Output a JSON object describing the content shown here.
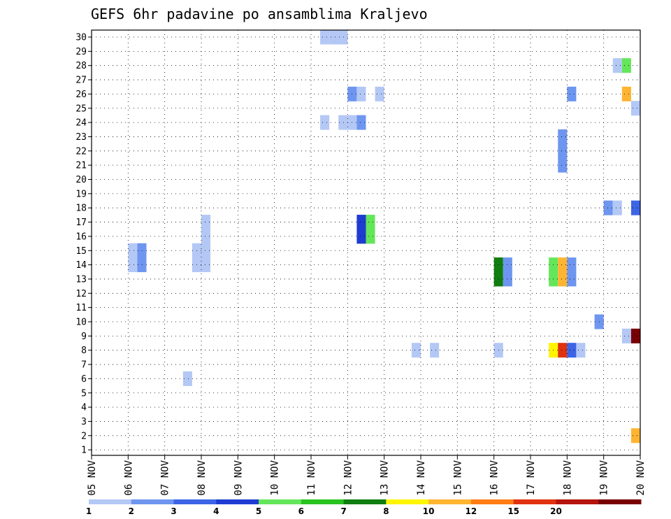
{
  "chart_data": {
    "type": "heatmap",
    "title": "GEFS 6hr padavine po ansamblima Kraljevo",
    "x_labels": [
      "05 NOV",
      "06 NOV",
      "07 NOV",
      "08 NOV",
      "09 NOV",
      "10 NOV",
      "11 NOV",
      "12 NOV",
      "13 NOV",
      "14 NOV",
      "15 NOV",
      "16 NOV",
      "17 NOV",
      "18 NOV",
      "19 NOV",
      "20 NOV"
    ],
    "x_range_days": [
      5,
      20
    ],
    "y_labels": [
      "1",
      "2",
      "3",
      "4",
      "5",
      "6",
      "7",
      "8",
      "9",
      "10",
      "11",
      "12",
      "13",
      "14",
      "15",
      "16",
      "17",
      "18",
      "19",
      "20",
      "21",
      "22",
      "23",
      "24",
      "25",
      "26",
      "27",
      "28",
      "29",
      "30"
    ],
    "y_range": [
      1,
      30
    ],
    "grid": true,
    "colorbar": {
      "labels": [
        "1",
        "2",
        "3",
        "4",
        "5",
        "6",
        "7",
        "8",
        "10",
        "12",
        "15",
        "20"
      ],
      "colors": [
        "#b4c8f5",
        "#6e96f0",
        "#3c64e6",
        "#1e3cd2",
        "#64e65a",
        "#28c31e",
        "#0f7d0f",
        "#fff500",
        "#ffb432",
        "#ff7d14",
        "#e1320f",
        "#b4140a",
        "#780000"
      ]
    },
    "cells": [
      {
        "member": 30,
        "start": 11.25,
        "end": 11.5,
        "color": "#b4c8f5"
      },
      {
        "member": 30,
        "start": 11.5,
        "end": 12.0,
        "color": "#b4c8f5"
      },
      {
        "member": 28,
        "start": 19.25,
        "end": 19.5,
        "color": "#b4c8f5"
      },
      {
        "member": 28,
        "start": 19.5,
        "end": 19.75,
        "color": "#64e65a"
      },
      {
        "member": 26,
        "start": 12.0,
        "end": 12.25,
        "color": "#6e96f0"
      },
      {
        "member": 26,
        "start": 12.25,
        "end": 12.5,
        "color": "#b4c8f5"
      },
      {
        "member": 26,
        "start": 12.75,
        "end": 13.0,
        "color": "#b4c8f5"
      },
      {
        "member": 26,
        "start": 18.0,
        "end": 18.25,
        "color": "#6e96f0"
      },
      {
        "member": 26,
        "start": 19.5,
        "end": 19.75,
        "color": "#ffb432"
      },
      {
        "member": 25,
        "start": 19.75,
        "end": 20.0,
        "color": "#b4c8f5"
      },
      {
        "member": 24,
        "start": 11.25,
        "end": 11.5,
        "color": "#b4c8f5"
      },
      {
        "member": 24,
        "start": 11.75,
        "end": 12.0,
        "color": "#b4c8f5"
      },
      {
        "member": 24,
        "start": 12.0,
        "end": 12.25,
        "color": "#b4c8f5"
      },
      {
        "member": 24,
        "start": 12.25,
        "end": 12.5,
        "color": "#6e96f0"
      },
      {
        "member": 23,
        "start": 17.75,
        "end": 18.0,
        "color": "#6e96f0"
      },
      {
        "member": 22,
        "start": 17.75,
        "end": 18.0,
        "color": "#6e96f0"
      },
      {
        "member": 21,
        "start": 17.75,
        "end": 18.0,
        "color": "#6e96f0"
      },
      {
        "member": 18,
        "start": 19.0,
        "end": 19.25,
        "color": "#6e96f0"
      },
      {
        "member": 18,
        "start": 19.25,
        "end": 19.5,
        "color": "#b4c8f5"
      },
      {
        "member": 18,
        "start": 19.75,
        "end": 20.0,
        "color": "#3c64e6"
      },
      {
        "member": 17,
        "start": 8.0,
        "end": 8.25,
        "color": "#b4c8f5"
      },
      {
        "member": 17,
        "start": 12.25,
        "end": 12.5,
        "color": "#1e3cd2"
      },
      {
        "member": 17,
        "start": 12.5,
        "end": 12.75,
        "color": "#64e65a"
      },
      {
        "member": 16,
        "start": 8.0,
        "end": 8.25,
        "color": "#b4c8f5"
      },
      {
        "member": 16,
        "start": 12.25,
        "end": 12.5,
        "color": "#1e3cd2"
      },
      {
        "member": 16,
        "start": 12.5,
        "end": 12.75,
        "color": "#64e65a"
      },
      {
        "member": 15,
        "start": 6.0,
        "end": 6.25,
        "color": "#b4c8f5"
      },
      {
        "member": 15,
        "start": 6.25,
        "end": 6.5,
        "color": "#6e96f0"
      },
      {
        "member": 15,
        "start": 7.75,
        "end": 8.25,
        "color": "#b4c8f5"
      },
      {
        "member": 14,
        "start": 6.0,
        "end": 6.25,
        "color": "#b4c8f5"
      },
      {
        "member": 14,
        "start": 6.25,
        "end": 6.5,
        "color": "#6e96f0"
      },
      {
        "member": 14,
        "start": 7.75,
        "end": 8.25,
        "color": "#b4c8f5"
      },
      {
        "member": 14,
        "start": 16.0,
        "end": 16.25,
        "color": "#0f7d0f"
      },
      {
        "member": 14,
        "start": 16.25,
        "end": 16.5,
        "color": "#6e96f0"
      },
      {
        "member": 14,
        "start": 17.5,
        "end": 17.75,
        "color": "#64e65a"
      },
      {
        "member": 14,
        "start": 17.75,
        "end": 18.0,
        "color": "#ffb432"
      },
      {
        "member": 14,
        "start": 18.0,
        "end": 18.25,
        "color": "#6e96f0"
      },
      {
        "member": 13,
        "start": 16.0,
        "end": 16.25,
        "color": "#0f7d0f"
      },
      {
        "member": 13,
        "start": 16.25,
        "end": 16.5,
        "color": "#6e96f0"
      },
      {
        "member": 13,
        "start": 17.5,
        "end": 17.75,
        "color": "#64e65a"
      },
      {
        "member": 13,
        "start": 17.75,
        "end": 18.0,
        "color": "#ffb432"
      },
      {
        "member": 13,
        "start": 18.0,
        "end": 18.25,
        "color": "#6e96f0"
      },
      {
        "member": 10,
        "start": 18.75,
        "end": 19.0,
        "color": "#6e96f0"
      },
      {
        "member": 9,
        "start": 19.5,
        "end": 19.75,
        "color": "#b4c8f5"
      },
      {
        "member": 9,
        "start": 19.75,
        "end": 20.0,
        "color": "#780000"
      },
      {
        "member": 8,
        "start": 13.75,
        "end": 14.0,
        "color": "#b4c8f5"
      },
      {
        "member": 8,
        "start": 14.25,
        "end": 14.5,
        "color": "#b4c8f5"
      },
      {
        "member": 8,
        "start": 16.0,
        "end": 16.25,
        "color": "#b4c8f5"
      },
      {
        "member": 8,
        "start": 17.5,
        "end": 17.75,
        "color": "#fff500"
      },
      {
        "member": 8,
        "start": 17.75,
        "end": 18.0,
        "color": "#e1320f"
      },
      {
        "member": 8,
        "start": 18.0,
        "end": 18.25,
        "color": "#3c64e6"
      },
      {
        "member": 8,
        "start": 18.25,
        "end": 18.5,
        "color": "#b4c8f5"
      },
      {
        "member": 6,
        "start": 7.5,
        "end": 7.75,
        "color": "#b4c8f5"
      },
      {
        "member": 2,
        "start": 19.75,
        "end": 20.0,
        "color": "#ffb432"
      }
    ]
  }
}
